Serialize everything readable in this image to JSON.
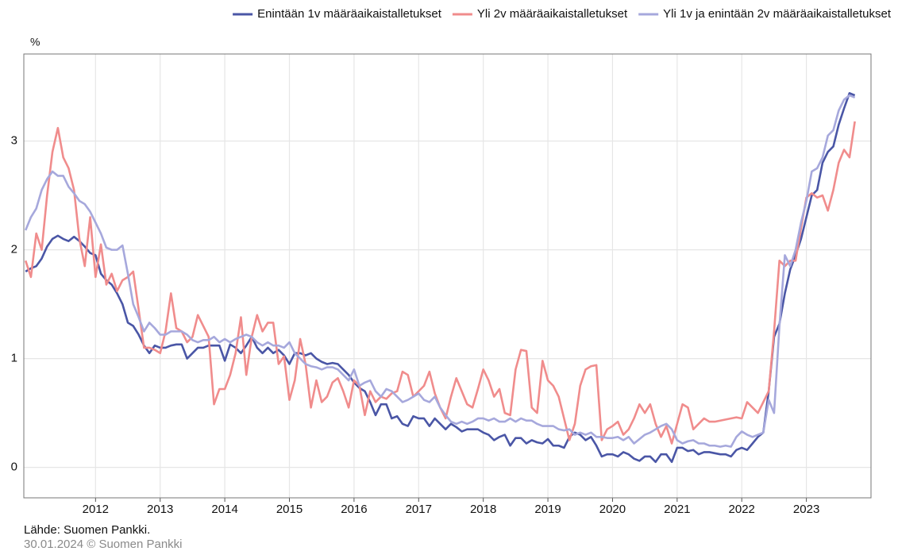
{
  "chart_data": {
    "type": "line",
    "ylabel": "%",
    "source": "Lähde: Suomen Pankki.",
    "footnote": "30.01.2024 © Suomen Pankki",
    "grid": true,
    "legend": "top-right",
    "xlim": [
      2010.89,
      2024.0
    ],
    "xticks": [
      2012,
      2013,
      2014,
      2015,
      2016,
      2017,
      2018,
      2019,
      2020,
      2021,
      2022,
      2023
    ],
    "ylim": [
      -0.28,
      3.8
    ],
    "yticks": [
      0,
      1,
      2,
      3
    ],
    "x": [
      2010.917,
      2011.0,
      2011.083,
      2011.167,
      2011.25,
      2011.333,
      2011.417,
      2011.5,
      2011.583,
      2011.667,
      2011.75,
      2011.833,
      2011.917,
      2012.0,
      2012.083,
      2012.167,
      2012.25,
      2012.333,
      2012.417,
      2012.5,
      2012.583,
      2012.667,
      2012.75,
      2012.833,
      2012.917,
      2013.0,
      2013.083,
      2013.167,
      2013.25,
      2013.333,
      2013.417,
      2013.5,
      2013.583,
      2013.667,
      2013.75,
      2013.833,
      2013.917,
      2014.0,
      2014.083,
      2014.167,
      2014.25,
      2014.333,
      2014.417,
      2014.5,
      2014.583,
      2014.667,
      2014.75,
      2014.833,
      2014.917,
      2015.0,
      2015.083,
      2015.167,
      2015.25,
      2015.333,
      2015.417,
      2015.5,
      2015.583,
      2015.667,
      2015.75,
      2015.833,
      2015.917,
      2016.0,
      2016.083,
      2016.167,
      2016.25,
      2016.333,
      2016.417,
      2016.5,
      2016.583,
      2016.667,
      2016.75,
      2016.833,
      2016.917,
      2017.0,
      2017.083,
      2017.167,
      2017.25,
      2017.333,
      2017.417,
      2017.5,
      2017.583,
      2017.667,
      2017.75,
      2017.833,
      2017.917,
      2018.0,
      2018.083,
      2018.167,
      2018.25,
      2018.333,
      2018.417,
      2018.5,
      2018.583,
      2018.667,
      2018.75,
      2018.833,
      2018.917,
      2019.0,
      2019.083,
      2019.167,
      2019.25,
      2019.333,
      2019.417,
      2019.5,
      2019.583,
      2019.667,
      2019.75,
      2019.833,
      2019.917,
      2020.0,
      2020.083,
      2020.167,
      2020.25,
      2020.333,
      2020.417,
      2020.5,
      2020.583,
      2020.667,
      2020.75,
      2020.833,
      2020.917,
      2021.0,
      2021.083,
      2021.167,
      2021.25,
      2021.333,
      2021.417,
      2021.5,
      2021.583,
      2021.667,
      2021.75,
      2021.833,
      2021.917,
      2022.0,
      2022.083,
      2022.167,
      2022.25,
      2022.333,
      2022.417,
      2022.5,
      2022.583,
      2022.667,
      2022.75,
      2022.833,
      2022.917,
      2023.0,
      2023.083,
      2023.167,
      2023.25,
      2023.333,
      2023.417,
      2023.5,
      2023.583,
      2023.667,
      2023.75
    ],
    "series": [
      {
        "name": "Enintään 1v määräaikaistalletukset",
        "color": "#4a56a6",
        "values": [
          1.8,
          1.83,
          1.85,
          1.92,
          2.03,
          2.1,
          2.13,
          2.1,
          2.08,
          2.12,
          2.08,
          2.03,
          1.97,
          1.95,
          1.78,
          1.72,
          1.68,
          1.6,
          1.5,
          1.33,
          1.3,
          1.22,
          1.12,
          1.05,
          1.12,
          1.1,
          1.1,
          1.12,
          1.13,
          1.13,
          1.0,
          1.05,
          1.1,
          1.1,
          1.12,
          1.12,
          1.12,
          0.98,
          1.13,
          1.1,
          1.05,
          1.12,
          1.2,
          1.1,
          1.05,
          1.1,
          1.05,
          1.08,
          1.03,
          0.95,
          1.05,
          1.05,
          1.03,
          1.05,
          1.0,
          0.97,
          0.95,
          0.96,
          0.95,
          0.9,
          0.85,
          0.78,
          0.73,
          0.7,
          0.6,
          0.48,
          0.58,
          0.58,
          0.45,
          0.47,
          0.4,
          0.38,
          0.47,
          0.45,
          0.45,
          0.38,
          0.45,
          0.4,
          0.35,
          0.4,
          0.37,
          0.33,
          0.35,
          0.35,
          0.35,
          0.32,
          0.3,
          0.25,
          0.28,
          0.3,
          0.2,
          0.27,
          0.27,
          0.22,
          0.25,
          0.23,
          0.22,
          0.26,
          0.2,
          0.2,
          0.18,
          0.28,
          0.32,
          0.3,
          0.25,
          0.28,
          0.2,
          0.1,
          0.12,
          0.12,
          0.1,
          0.14,
          0.12,
          0.08,
          0.06,
          0.1,
          0.1,
          0.05,
          0.12,
          0.12,
          0.05,
          0.18,
          0.18,
          0.15,
          0.16,
          0.12,
          0.14,
          0.14,
          0.13,
          0.12,
          0.12,
          0.1,
          0.16,
          0.18,
          0.16,
          0.22,
          0.28,
          0.32,
          0.7,
          1.2,
          1.32,
          1.6,
          1.82,
          1.95,
          2.1,
          2.3,
          2.5,
          2.55,
          2.8,
          2.9,
          2.95,
          3.15,
          3.3,
          3.44,
          3.42
        ]
      },
      {
        "name": "Yli 2v määräaikaistalletukset",
        "color": "#f08c8c",
        "values": [
          1.9,
          1.75,
          2.15,
          2.0,
          2.5,
          2.9,
          3.12,
          2.85,
          2.75,
          2.55,
          2.1,
          1.85,
          2.3,
          1.75,
          2.05,
          1.68,
          1.78,
          1.62,
          1.72,
          1.75,
          1.8,
          1.45,
          1.1,
          1.1,
          1.08,
          1.05,
          1.25,
          1.6,
          1.28,
          1.25,
          1.15,
          1.2,
          1.4,
          1.3,
          1.2,
          0.58,
          0.72,
          0.72,
          0.85,
          1.05,
          1.38,
          0.85,
          1.2,
          1.4,
          1.25,
          1.33,
          1.33,
          0.95,
          1.02,
          0.62,
          0.8,
          1.18,
          0.95,
          0.55,
          0.8,
          0.6,
          0.65,
          0.78,
          0.82,
          0.7,
          0.55,
          0.8,
          0.75,
          0.48,
          0.7,
          0.6,
          0.65,
          0.63,
          0.68,
          0.7,
          0.88,
          0.85,
          0.65,
          0.7,
          0.75,
          0.88,
          0.68,
          0.55,
          0.45,
          0.65,
          0.82,
          0.7,
          0.58,
          0.55,
          0.72,
          0.9,
          0.8,
          0.65,
          0.72,
          0.5,
          0.48,
          0.9,
          1.08,
          1.07,
          0.55,
          0.5,
          0.98,
          0.8,
          0.75,
          0.65,
          0.45,
          0.25,
          0.4,
          0.75,
          0.9,
          0.93,
          0.94,
          0.25,
          0.35,
          0.38,
          0.42,
          0.3,
          0.35,
          0.45,
          0.58,
          0.5,
          0.58,
          0.4,
          0.28,
          0.38,
          0.22,
          0.4,
          0.58,
          0.55,
          0.35,
          0.4,
          0.45,
          0.42,
          0.42,
          0.43,
          0.44,
          0.45,
          0.46,
          0.45,
          0.6,
          0.55,
          0.5,
          0.6,
          0.7,
          1.25,
          1.9,
          1.85,
          1.9,
          1.9,
          2.2,
          2.48,
          2.52,
          2.48,
          2.5,
          2.36,
          2.55,
          2.8,
          2.92,
          2.85,
          3.18
        ]
      },
      {
        "name": "Yli 1v ja enintään 2v määräaikaistalletukset",
        "color": "#a6a8dc",
        "values": [
          2.18,
          2.3,
          2.38,
          2.55,
          2.65,
          2.72,
          2.68,
          2.68,
          2.58,
          2.52,
          2.45,
          2.42,
          2.35,
          2.25,
          2.15,
          2.02,
          2.0,
          2.0,
          2.04,
          1.78,
          1.5,
          1.38,
          1.25,
          1.33,
          1.28,
          1.22,
          1.22,
          1.25,
          1.25,
          1.25,
          1.22,
          1.17,
          1.15,
          1.17,
          1.17,
          1.2,
          1.15,
          1.18,
          1.15,
          1.18,
          1.2,
          1.22,
          1.2,
          1.15,
          1.12,
          1.15,
          1.12,
          1.12,
          1.1,
          1.15,
          1.05,
          1.0,
          0.95,
          0.93,
          0.92,
          0.9,
          0.92,
          0.92,
          0.9,
          0.85,
          0.8,
          0.9,
          0.75,
          0.78,
          0.8,
          0.7,
          0.65,
          0.72,
          0.7,
          0.65,
          0.6,
          0.62,
          0.65,
          0.68,
          0.62,
          0.6,
          0.65,
          0.55,
          0.48,
          0.42,
          0.4,
          0.42,
          0.4,
          0.42,
          0.45,
          0.45,
          0.43,
          0.45,
          0.42,
          0.42,
          0.45,
          0.42,
          0.45,
          0.43,
          0.43,
          0.4,
          0.38,
          0.38,
          0.38,
          0.35,
          0.34,
          0.35,
          0.3,
          0.32,
          0.3,
          0.32,
          0.28,
          0.28,
          0.27,
          0.27,
          0.28,
          0.25,
          0.28,
          0.22,
          0.26,
          0.3,
          0.32,
          0.35,
          0.38,
          0.4,
          0.35,
          0.25,
          0.22,
          0.24,
          0.25,
          0.22,
          0.22,
          0.2,
          0.2,
          0.19,
          0.2,
          0.19,
          0.28,
          0.33,
          0.3,
          0.28,
          0.3,
          0.32,
          0.62,
          0.5,
          1.3,
          1.95,
          1.85,
          2.0,
          2.25,
          2.45,
          2.72,
          2.75,
          2.85,
          3.05,
          3.1,
          3.28,
          3.38,
          3.42,
          3.4
        ]
      }
    ]
  }
}
